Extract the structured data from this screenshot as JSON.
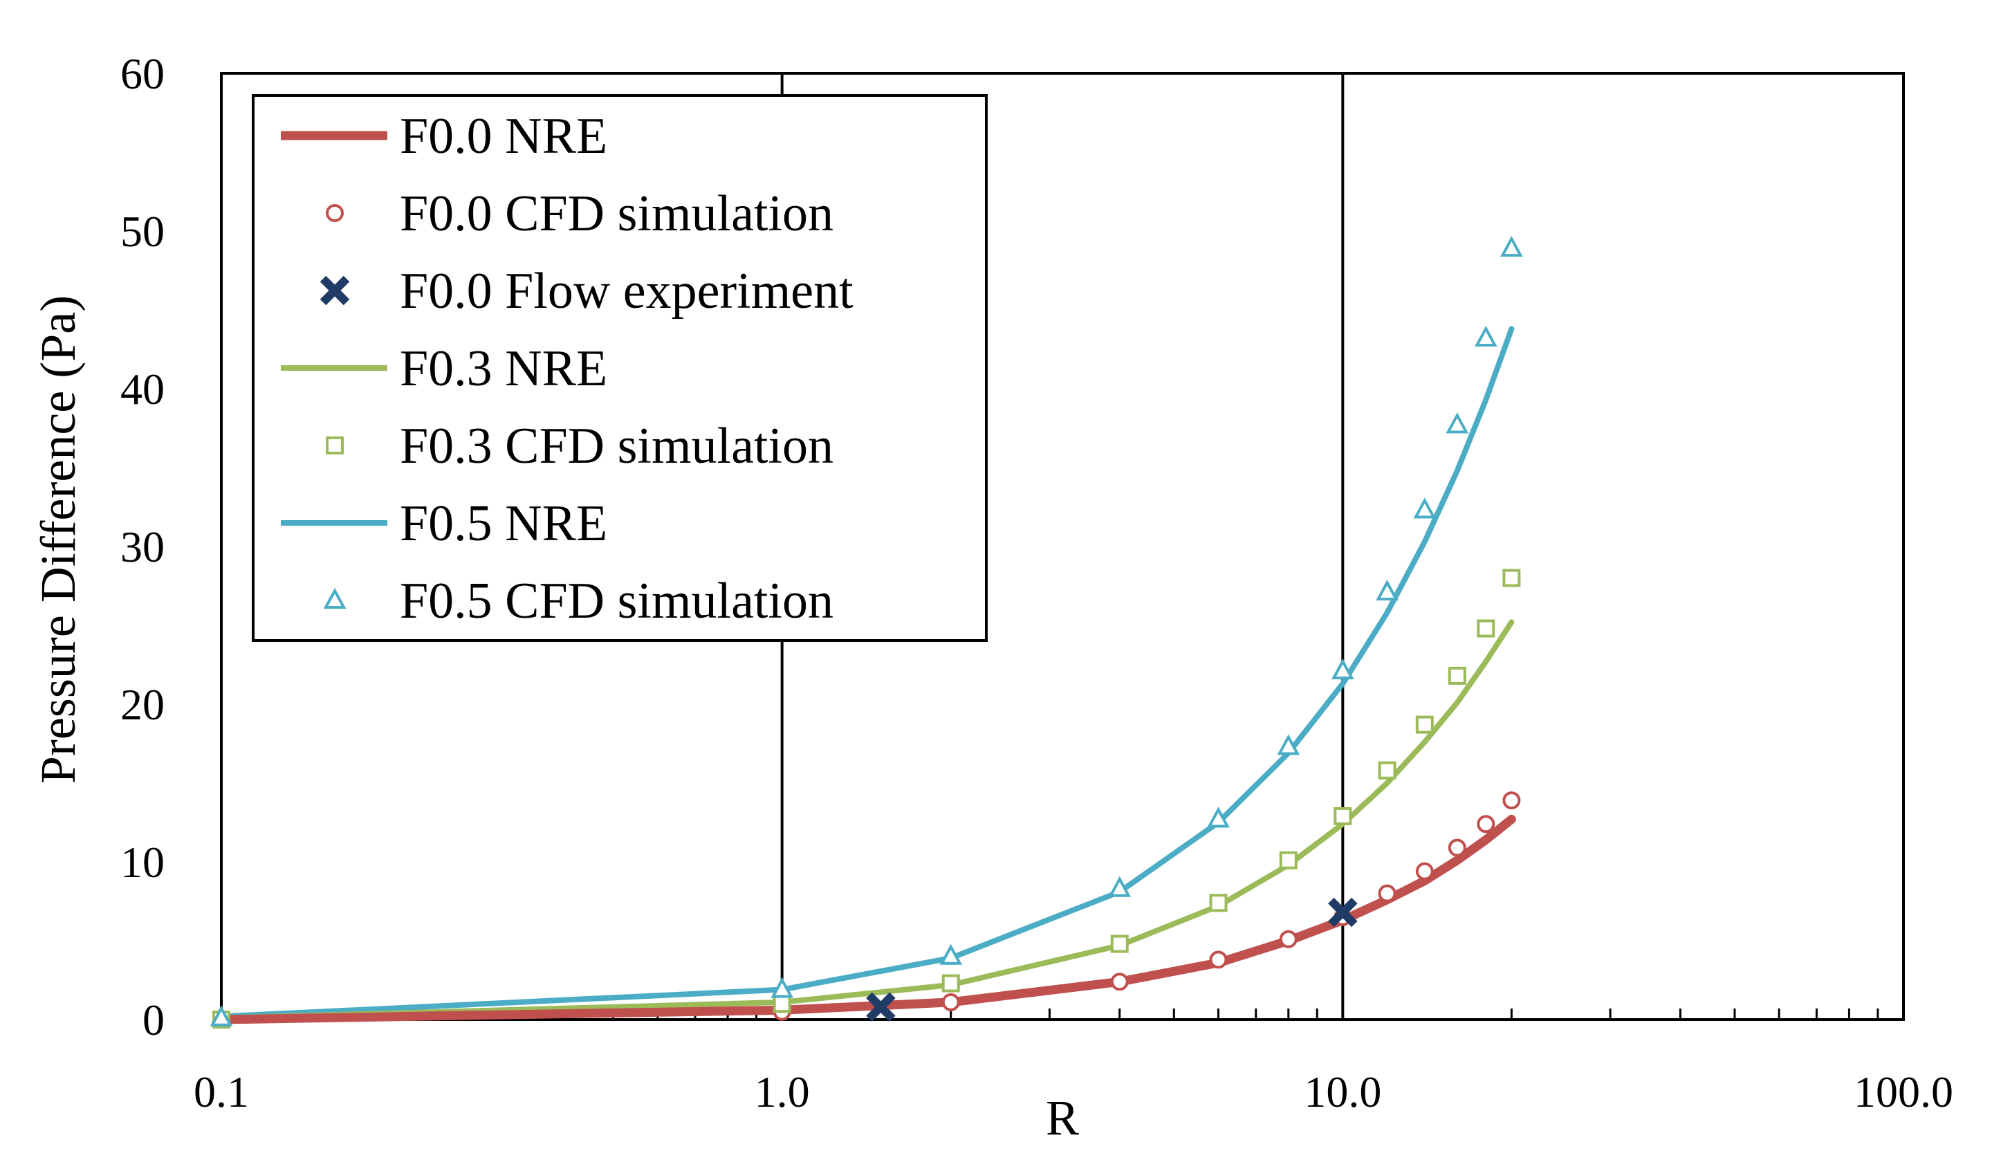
{
  "chart_data": {
    "type": "line",
    "title": "",
    "xlabel": "R",
    "ylabel": "Pressure Difference (Pa)",
    "xscale": "log",
    "xlim": [
      0.1,
      100
    ],
    "ylim": [
      0,
      60
    ],
    "x_ticks": [
      0.1,
      1,
      10,
      100
    ],
    "x_tick_labels": [
      "0.1",
      "1.0",
      "10.0",
      "100.0"
    ],
    "y_ticks": [
      0,
      10,
      20,
      30,
      40,
      50,
      60
    ],
    "y_tick_labels": [
      "0",
      "10",
      "20",
      "30",
      "40",
      "50",
      "60"
    ],
    "vertical_gridlines_at": [
      1,
      10
    ],
    "legend_position": "top-left",
    "series": [
      {
        "name": "F0.0 NRE",
        "kind": "line",
        "color": "#C0504D",
        "weight": "thick",
        "x": [
          0.1,
          1,
          2,
          4,
          6,
          8,
          10,
          12,
          14,
          16,
          18,
          20
        ],
        "y": [
          0,
          0.6,
          1.1,
          2.4,
          3.6,
          5.0,
          6.3,
          7.6,
          8.8,
          10.1,
          11.4,
          12.7
        ]
      },
      {
        "name": "F0.0 CFD simulation",
        "kind": "marker",
        "marker": "circle",
        "color": "#C0504D",
        "x": [
          0.1,
          1,
          2,
          4,
          6,
          8,
          10,
          12,
          14,
          16,
          18,
          20
        ],
        "y": [
          0,
          0.5,
          1.1,
          2.4,
          3.8,
          5.1,
          6.5,
          8.0,
          9.4,
          10.9,
          12.4,
          13.9
        ]
      },
      {
        "name": "F0.0 Flow experiment",
        "kind": "marker",
        "marker": "x",
        "color": "#1F3B66",
        "x": [
          1.5,
          10
        ],
        "y": [
          0.8,
          6.8
        ]
      },
      {
        "name": "F0.3 NRE",
        "kind": "line",
        "color": "#9BBB59",
        "weight": "normal",
        "x": [
          0.1,
          1,
          2,
          4,
          6,
          8,
          10,
          12,
          14,
          16,
          18,
          20
        ],
        "y": [
          0.1,
          1.1,
          2.2,
          4.7,
          7.2,
          9.8,
          12.4,
          15.0,
          17.6,
          20.1,
          22.7,
          25.2
        ]
      },
      {
        "name": "F0.3 CFD simulation",
        "kind": "marker",
        "marker": "square",
        "color": "#9BBB59",
        "x": [
          0.1,
          1,
          2,
          4,
          6,
          8,
          10,
          12,
          14,
          16,
          18,
          20
        ],
        "y": [
          0,
          1.0,
          2.3,
          4.8,
          7.4,
          10.1,
          12.9,
          15.8,
          18.7,
          21.8,
          24.8,
          28.0
        ]
      },
      {
        "name": "F0.5 NRE",
        "kind": "line",
        "color": "#4BACC6",
        "weight": "normal",
        "x": [
          0.1,
          1,
          2,
          4,
          6,
          8,
          10,
          12,
          14,
          16,
          18,
          20
        ],
        "y": [
          0.2,
          1.9,
          3.9,
          8.1,
          12.5,
          16.9,
          21.3,
          25.8,
          30.3,
          34.8,
          39.3,
          43.8
        ]
      },
      {
        "name": "F0.5 CFD simulation",
        "kind": "marker",
        "marker": "triangle",
        "color": "#4BACC6",
        "x": [
          0.1,
          1,
          2,
          4,
          6,
          8,
          10,
          12,
          14,
          16,
          18,
          20
        ],
        "y": [
          0.1,
          1.9,
          4.0,
          8.3,
          12.7,
          17.3,
          22.1,
          27.1,
          32.3,
          37.7,
          43.2,
          48.9
        ]
      }
    ]
  }
}
